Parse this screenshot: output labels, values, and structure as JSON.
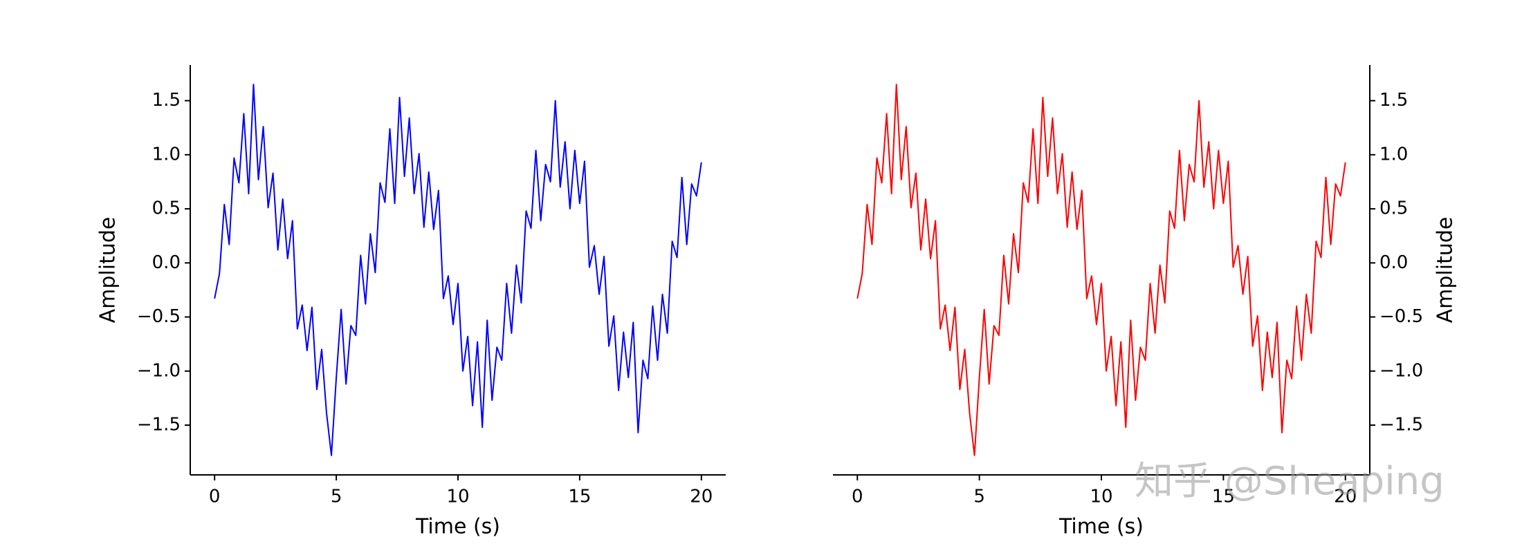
{
  "chart_data": [
    {
      "type": "line",
      "xlabel": "Time (s)",
      "ylabel": "Amplitude",
      "y_axis_side": "left",
      "xlim": [
        -1,
        21
      ],
      "ylim": [
        -1.96,
        1.83
      ],
      "xticks": [
        0,
        5,
        10,
        15,
        20
      ],
      "yticks": [
        {
          "value": -1.5,
          "label": "−1.5"
        },
        {
          "value": -1.0,
          "label": "−1.0"
        },
        {
          "value": -0.5,
          "label": "−0.5"
        },
        {
          "value": 0,
          "label": "0.0"
        },
        0.5,
        {
          "value": 1.0,
          "label": "1.0"
        },
        1.5
      ],
      "x": [
        0,
        0.2,
        0.4,
        0.6,
        0.8,
        1,
        1.2,
        1.4,
        1.6,
        1.8,
        2,
        2.2,
        2.4,
        2.6,
        2.8,
        3,
        3.2,
        3.4,
        3.6,
        3.8,
        4,
        4.2,
        4.4,
        4.6,
        4.8,
        5,
        5.2,
        5.4,
        5.6,
        5.8,
        6,
        6.2,
        6.4,
        6.6,
        6.8,
        7,
        7.2,
        7.4,
        7.6,
        7.8,
        8,
        8.2,
        8.4,
        8.6,
        8.8,
        9,
        9.2,
        9.4,
        9.6,
        9.8,
        10,
        10.2,
        10.4,
        10.6,
        10.8,
        11,
        11.2,
        11.4,
        11.6,
        11.8,
        12,
        12.2,
        12.4,
        12.6,
        12.8,
        13,
        13.2,
        13.4,
        13.6,
        13.8,
        14,
        14.2,
        14.4,
        14.6,
        14.8,
        15,
        15.2,
        15.4,
        15.6,
        15.8,
        16,
        16.2,
        16.4,
        16.6,
        16.8,
        17,
        17.2,
        17.4,
        17.6,
        17.8,
        18,
        18.2,
        18.4,
        18.6,
        18.8,
        19,
        19.2,
        19.4,
        19.6,
        19.8,
        20
      ],
      "series": [
        {
          "color": "#0000ff",
          "values": [
            -0.33,
            -0.1,
            0.54,
            0.17,
            0.97,
            0.74,
            1.38,
            0.64,
            1.65,
            0.77,
            1.26,
            0.51,
            0.83,
            0.12,
            0.59,
            0.04,
            0.39,
            -0.61,
            -0.39,
            -0.81,
            -0.41,
            -1.17,
            -0.8,
            -1.39,
            -1.78,
            -1.06,
            -0.43,
            -1.12,
            -0.58,
            -0.67,
            0.07,
            -0.38,
            0.27,
            -0.09,
            0.74,
            0.56,
            1.24,
            0.55,
            1.53,
            0.8,
            1.34,
            0.64,
            1.01,
            0.33,
            0.84,
            0.31,
            0.67,
            -0.33,
            -0.12,
            -0.57,
            -0.19,
            -1.0,
            -0.68,
            -1.32,
            -0.73,
            -1.52,
            -0.53,
            -1.27,
            -0.78,
            -0.9,
            -0.19,
            -0.65,
            -0.02,
            -0.37,
            0.48,
            0.32,
            1.04,
            0.39,
            0.91,
            0.75,
            1.5,
            0.7,
            1.12,
            0.5,
            1.04,
            0.55,
            0.94,
            -0.04,
            0.16,
            -0.29,
            0.06,
            -0.77,
            -0.49,
            -1.18,
            -0.64,
            -1.06,
            -0.55,
            -1.57,
            -0.9,
            -1.07,
            -0.4,
            -0.9,
            -0.29,
            -0.65,
            0.2,
            0.05,
            0.79,
            0.17,
            0.73,
            0.62,
            0.93
          ]
        }
      ]
    },
    {
      "type": "line",
      "xlabel": "Time (s)",
      "ylabel": "Amplitude",
      "y_axis_side": "right",
      "xlim": [
        -1,
        21
      ],
      "ylim": [
        -1.96,
        1.83
      ],
      "xticks": [
        0,
        5,
        10,
        15,
        20
      ],
      "yticks": [
        {
          "value": -1.5,
          "label": "−1.5"
        },
        {
          "value": -1.0,
          "label": "−1.0"
        },
        {
          "value": -0.5,
          "label": "−0.5"
        },
        {
          "value": 0,
          "label": "0.0"
        },
        0.5,
        {
          "value": 1.0,
          "label": "1.0"
        },
        1.5
      ],
      "x": [
        0,
        0.2,
        0.4,
        0.6,
        0.8,
        1,
        1.2,
        1.4,
        1.6,
        1.8,
        2,
        2.2,
        2.4,
        2.6,
        2.8,
        3,
        3.2,
        3.4,
        3.6,
        3.8,
        4,
        4.2,
        4.4,
        4.6,
        4.8,
        5,
        5.2,
        5.4,
        5.6,
        5.8,
        6,
        6.2,
        6.4,
        6.6,
        6.8,
        7,
        7.2,
        7.4,
        7.6,
        7.8,
        8,
        8.2,
        8.4,
        8.6,
        8.8,
        9,
        9.2,
        9.4,
        9.6,
        9.8,
        10,
        10.2,
        10.4,
        10.6,
        10.8,
        11,
        11.2,
        11.4,
        11.6,
        11.8,
        12,
        12.2,
        12.4,
        12.6,
        12.8,
        13,
        13.2,
        13.4,
        13.6,
        13.8,
        14,
        14.2,
        14.4,
        14.6,
        14.8,
        15,
        15.2,
        15.4,
        15.6,
        15.8,
        16,
        16.2,
        16.4,
        16.6,
        16.8,
        17,
        17.2,
        17.4,
        17.6,
        17.8,
        18,
        18.2,
        18.4,
        18.6,
        18.8,
        19,
        19.2,
        19.4,
        19.6,
        19.8,
        20
      ],
      "series": [
        {
          "color": "#ff0000",
          "values": [
            -0.33,
            -0.1,
            0.54,
            0.17,
            0.97,
            0.74,
            1.38,
            0.64,
            1.65,
            0.77,
            1.26,
            0.51,
            0.83,
            0.12,
            0.59,
            0.04,
            0.39,
            -0.61,
            -0.39,
            -0.81,
            -0.41,
            -1.17,
            -0.8,
            -1.39,
            -1.78,
            -1.06,
            -0.43,
            -1.12,
            -0.58,
            -0.67,
            0.07,
            -0.38,
            0.27,
            -0.09,
            0.74,
            0.56,
            1.24,
            0.55,
            1.53,
            0.8,
            1.34,
            0.64,
            1.01,
            0.33,
            0.84,
            0.31,
            0.67,
            -0.33,
            -0.12,
            -0.57,
            -0.19,
            -1.0,
            -0.68,
            -1.32,
            -0.73,
            -1.52,
            -0.53,
            -1.27,
            -0.78,
            -0.9,
            -0.19,
            -0.65,
            -0.02,
            -0.37,
            0.48,
            0.32,
            1.04,
            0.39,
            0.91,
            0.75,
            1.5,
            0.7,
            1.12,
            0.5,
            1.04,
            0.55,
            0.94,
            -0.04,
            0.16,
            -0.29,
            0.06,
            -0.77,
            -0.49,
            -1.18,
            -0.64,
            -1.06,
            -0.55,
            -1.57,
            -0.9,
            -1.07,
            -0.4,
            -0.9,
            -0.29,
            -0.65,
            0.2,
            0.05,
            0.79,
            0.17,
            0.73,
            0.62,
            0.93
          ]
        }
      ]
    }
  ],
  "watermark": "知乎 @Sheaping"
}
